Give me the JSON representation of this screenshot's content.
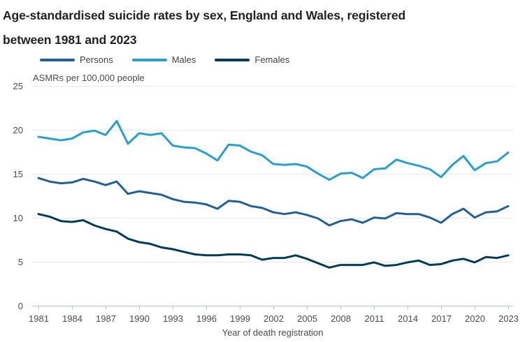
{
  "chart_data": {
    "type": "line",
    "title": "Age-standardised suicide rates by sex, England and Wales, registered between 1981 and 2023",
    "title_lines": [
      "Age-standardised suicide rates by sex, England and Wales, registered",
      "between 1981 and 2023"
    ],
    "unit_label": "ASMRs per 100,000 people",
    "xlabel": "Year of death registration",
    "ylabel": "ASMRs per 100,000 people",
    "xlim": [
      1981,
      2023
    ],
    "ylim": [
      0,
      25
    ],
    "y_ticks": [
      0,
      5,
      10,
      15,
      20,
      25
    ],
    "x_tick_labels": [
      "1981",
      "1984",
      "1987",
      "1990",
      "1993",
      "1996",
      "1999",
      "2002",
      "2005",
      "2008",
      "2011",
      "2014",
      "2017",
      "2020",
      "2023"
    ],
    "grid": "horizontal",
    "legend_position": "top",
    "x": [
      1981,
      1982,
      1983,
      1984,
      1985,
      1986,
      1987,
      1988,
      1989,
      1990,
      1991,
      1992,
      1993,
      1994,
      1995,
      1996,
      1997,
      1998,
      1999,
      2000,
      2001,
      2002,
      2003,
      2004,
      2005,
      2006,
      2007,
      2008,
      2009,
      2010,
      2011,
      2012,
      2013,
      2014,
      2015,
      2016,
      2017,
      2018,
      2019,
      2020,
      2021,
      2022,
      2023
    ],
    "series": [
      {
        "name": "Persons",
        "color": "#206095",
        "values": [
          14.5,
          14.1,
          13.9,
          14.0,
          14.4,
          14.1,
          13.7,
          14.1,
          12.7,
          13.0,
          12.8,
          12.6,
          12.1,
          11.8,
          11.7,
          11.5,
          11.0,
          11.9,
          11.8,
          11.3,
          11.1,
          10.6,
          10.4,
          10.6,
          10.3,
          9.9,
          9.1,
          9.6,
          9.8,
          9.4,
          10.0,
          9.9,
          10.5,
          10.4,
          10.4,
          10.0,
          9.4,
          10.4,
          11.0,
          10.0,
          10.6,
          10.7,
          11.3
        ]
      },
      {
        "name": "Males",
        "color": "#27a0cc",
        "values": [
          19.2,
          19.0,
          18.8,
          19.0,
          19.7,
          19.9,
          19.4,
          21.0,
          18.4,
          19.6,
          19.4,
          19.6,
          18.2,
          18.0,
          17.9,
          17.3,
          16.5,
          18.3,
          18.2,
          17.5,
          17.1,
          16.1,
          16.0,
          16.1,
          15.8,
          15.0,
          14.3,
          15.0,
          15.1,
          14.5,
          15.5,
          15.6,
          16.6,
          16.2,
          15.9,
          15.5,
          14.6,
          16.0,
          17.0,
          15.4,
          16.2,
          16.4,
          17.4
        ]
      },
      {
        "name": "Females",
        "color": "#003c57",
        "values": [
          10.4,
          10.1,
          9.6,
          9.5,
          9.7,
          9.1,
          8.7,
          8.4,
          7.6,
          7.2,
          7.0,
          6.6,
          6.4,
          6.1,
          5.8,
          5.7,
          5.7,
          5.8,
          5.8,
          5.7,
          5.2,
          5.4,
          5.4,
          5.7,
          5.3,
          4.8,
          4.3,
          4.6,
          4.6,
          4.6,
          4.9,
          4.5,
          4.6,
          4.9,
          5.1,
          4.6,
          4.7,
          5.1,
          5.3,
          4.9,
          5.5,
          5.4,
          5.7
        ]
      }
    ]
  },
  "colors": {
    "background": "#ffffff",
    "title_text": "#222222",
    "axis_text": "#4a4a4a",
    "gridline": "#e8e8e8",
    "axis_line": "#b1c3d2"
  }
}
